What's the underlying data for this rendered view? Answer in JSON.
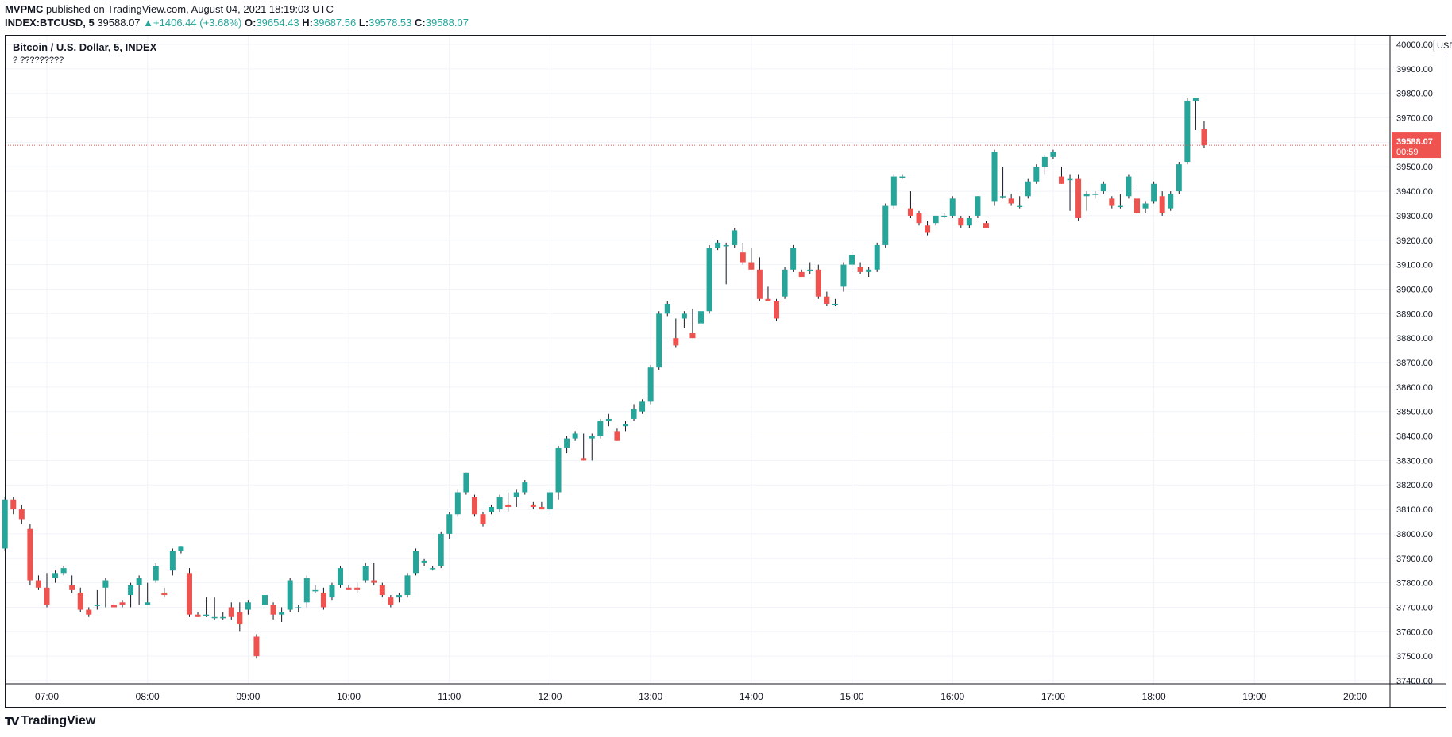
{
  "header": {
    "publisher": "MVPMC",
    "published_line": "published on TradingView.com, August 04, 2021 18:19:03 UTC",
    "symbol": "INDEX:BTCUSD, 5",
    "last": "39588.07",
    "change": "+1406.44 (+3.68%)",
    "o_label": "O:",
    "o": "39654.43",
    "h_label": "H:",
    "h": "39687.56",
    "l_label": "L:",
    "l": "39578.53",
    "c_label": "C:",
    "c": "39588.07"
  },
  "chart_header": {
    "title": "Bitcoin / U.S. Dollar, 5, INDEX",
    "subtitle": "? ?????????",
    "currency_button": "USD"
  },
  "price_badge": {
    "price": "39588.07",
    "countdown": "00:59"
  },
  "brand": {
    "name": "TradingView"
  },
  "colors": {
    "up": "#26a69a",
    "down": "#ef5350",
    "grid": "#f0f3fa",
    "text": "#131722"
  },
  "chart_data": {
    "type": "candlestick",
    "title": "Bitcoin / U.S. Dollar, 5, INDEX",
    "interval_minutes": 5,
    "ylim": [
      37350,
      40050
    ],
    "y_ticks": [
      37400,
      37500,
      37600,
      37700,
      37800,
      37900,
      38000,
      38100,
      38200,
      38300,
      38400,
      38500,
      38600,
      38700,
      38800,
      38900,
      39000,
      39100,
      39200,
      39300,
      39400,
      39500,
      39600,
      39700,
      39800,
      39900,
      40000
    ],
    "y_tick_labels": [
      "37400.00",
      "37500.00",
      "37600.00",
      "37700.00",
      "37800.00",
      "37900.00",
      "38000.00",
      "38100.00",
      "38200.00",
      "38300.00",
      "38400.00",
      "38500.00",
      "38600.00",
      "38700.00",
      "38800.00",
      "38900.00",
      "39000.00",
      "39100.00",
      "39200.00",
      "39300.00",
      "39400.00",
      "39500.00",
      "39600.00",
      "39700.00",
      "39800.00",
      "39900.00",
      "40000.00"
    ],
    "x_ticks": [
      "07:00",
      "08:00",
      "09:00",
      "10:00",
      "11:00",
      "12:00",
      "13:00",
      "14:00",
      "15:00",
      "16:00",
      "17:00",
      "18:00",
      "19:00",
      "20:00"
    ],
    "x_tick_times_min": [
      420,
      480,
      540,
      600,
      660,
      720,
      780,
      840,
      900,
      960,
      1020,
      1080,
      1140,
      1200
    ],
    "xlim_min": [
      395,
      1225
    ],
    "last_price": 39588.07,
    "candles": [
      {
        "t": 395,
        "o": 37940,
        "h": 38150,
        "l": 37930,
        "c": 38140
      },
      {
        "t": 400,
        "o": 38140,
        "h": 38150,
        "l": 38080,
        "c": 38100
      },
      {
        "t": 405,
        "o": 38100,
        "h": 38120,
        "l": 38040,
        "c": 38060
      },
      {
        "t": 410,
        "o": 38020,
        "h": 38040,
        "l": 37790,
        "c": 37810
      },
      {
        "t": 415,
        "o": 37810,
        "h": 37830,
        "l": 37770,
        "c": 37780
      },
      {
        "t": 420,
        "o": 37780,
        "h": 37840,
        "l": 37700,
        "c": 37710
      },
      {
        "t": 425,
        "o": 37820,
        "h": 37850,
        "l": 37800,
        "c": 37840
      },
      {
        "t": 430,
        "o": 37840,
        "h": 37870,
        "l": 37830,
        "c": 37860
      },
      {
        "t": 435,
        "o": 37790,
        "h": 37830,
        "l": 37760,
        "c": 37770
      },
      {
        "t": 440,
        "o": 37760,
        "h": 37780,
        "l": 37680,
        "c": 37690
      },
      {
        "t": 445,
        "o": 37690,
        "h": 37700,
        "l": 37660,
        "c": 37670
      },
      {
        "t": 450,
        "o": 37710,
        "h": 37770,
        "l": 37690,
        "c": 37710
      },
      {
        "t": 455,
        "o": 37780,
        "h": 37820,
        "l": 37700,
        "c": 37810
      },
      {
        "t": 460,
        "o": 37710,
        "h": 37720,
        "l": 37700,
        "c": 37700
      },
      {
        "t": 465,
        "o": 37720,
        "h": 37730,
        "l": 37700,
        "c": 37710
      },
      {
        "t": 470,
        "o": 37750,
        "h": 37800,
        "l": 37700,
        "c": 37790
      },
      {
        "t": 475,
        "o": 37790,
        "h": 37830,
        "l": 37710,
        "c": 37820
      },
      {
        "t": 480,
        "o": 37710,
        "h": 37800,
        "l": 37710,
        "c": 37720
      },
      {
        "t": 485,
        "o": 37810,
        "h": 37880,
        "l": 37800,
        "c": 37870
      },
      {
        "t": 490,
        "o": 37760,
        "h": 37780,
        "l": 37740,
        "c": 37750
      },
      {
        "t": 495,
        "o": 37850,
        "h": 37940,
        "l": 37830,
        "c": 37930
      },
      {
        "t": 500,
        "o": 37930,
        "h": 37950,
        "l": 37920,
        "c": 37950
      },
      {
        "t": 505,
        "o": 37840,
        "h": 37860,
        "l": 37660,
        "c": 37670
      },
      {
        "t": 510,
        "o": 37670,
        "h": 37680,
        "l": 37660,
        "c": 37660
      },
      {
        "t": 515,
        "o": 37670,
        "h": 37740,
        "l": 37660,
        "c": 37670
      },
      {
        "t": 520,
        "o": 37660,
        "h": 37740,
        "l": 37650,
        "c": 37660
      },
      {
        "t": 525,
        "o": 37660,
        "h": 37680,
        "l": 37650,
        "c": 37660
      },
      {
        "t": 530,
        "o": 37700,
        "h": 37720,
        "l": 37650,
        "c": 37660
      },
      {
        "t": 535,
        "o": 37680,
        "h": 37720,
        "l": 37600,
        "c": 37630
      },
      {
        "t": 540,
        "o": 37690,
        "h": 37730,
        "l": 37670,
        "c": 37720
      },
      {
        "t": 545,
        "o": 37580,
        "h": 37590,
        "l": 37490,
        "c": 37500
      },
      {
        "t": 550,
        "o": 37710,
        "h": 37760,
        "l": 37700,
        "c": 37750
      },
      {
        "t": 555,
        "o": 37710,
        "h": 37720,
        "l": 37650,
        "c": 37670
      },
      {
        "t": 560,
        "o": 37670,
        "h": 37700,
        "l": 37640,
        "c": 37680
      },
      {
        "t": 565,
        "o": 37690,
        "h": 37820,
        "l": 37680,
        "c": 37810
      },
      {
        "t": 570,
        "o": 37700,
        "h": 37710,
        "l": 37680,
        "c": 37700
      },
      {
        "t": 575,
        "o": 37720,
        "h": 37830,
        "l": 37700,
        "c": 37820
      },
      {
        "t": 580,
        "o": 37770,
        "h": 37790,
        "l": 37760,
        "c": 37770
      },
      {
        "t": 585,
        "o": 37760,
        "h": 37780,
        "l": 37690,
        "c": 37700
      },
      {
        "t": 590,
        "o": 37740,
        "h": 37800,
        "l": 37730,
        "c": 37790
      },
      {
        "t": 595,
        "o": 37790,
        "h": 37870,
        "l": 37780,
        "c": 37860
      },
      {
        "t": 600,
        "o": 37780,
        "h": 37790,
        "l": 37770,
        "c": 37770
      },
      {
        "t": 605,
        "o": 37780,
        "h": 37800,
        "l": 37760,
        "c": 37770
      },
      {
        "t": 610,
        "o": 37810,
        "h": 37880,
        "l": 37800,
        "c": 37870
      },
      {
        "t": 615,
        "o": 37810,
        "h": 37880,
        "l": 37790,
        "c": 37800
      },
      {
        "t": 620,
        "o": 37790,
        "h": 37800,
        "l": 37740,
        "c": 37750
      },
      {
        "t": 625,
        "o": 37740,
        "h": 37750,
        "l": 37700,
        "c": 37710
      },
      {
        "t": 630,
        "o": 37740,
        "h": 37760,
        "l": 37720,
        "c": 37750
      },
      {
        "t": 635,
        "o": 37750,
        "h": 37840,
        "l": 37740,
        "c": 37830
      },
      {
        "t": 640,
        "o": 37840,
        "h": 37940,
        "l": 37830,
        "c": 37930
      },
      {
        "t": 645,
        "o": 37880,
        "h": 37900,
        "l": 37870,
        "c": 37890
      },
      {
        "t": 650,
        "o": 37860,
        "h": 37870,
        "l": 37850,
        "c": 37860
      },
      {
        "t": 655,
        "o": 37870,
        "h": 38010,
        "l": 37860,
        "c": 38000
      },
      {
        "t": 660,
        "o": 38000,
        "h": 38090,
        "l": 37980,
        "c": 38080
      },
      {
        "t": 665,
        "o": 38080,
        "h": 38180,
        "l": 38070,
        "c": 38170
      },
      {
        "t": 670,
        "o": 38170,
        "h": 38250,
        "l": 38160,
        "c": 38250
      },
      {
        "t": 675,
        "o": 38150,
        "h": 38160,
        "l": 38070,
        "c": 38080
      },
      {
        "t": 680,
        "o": 38080,
        "h": 38090,
        "l": 38030,
        "c": 38040
      },
      {
        "t": 685,
        "o": 38090,
        "h": 38120,
        "l": 38080,
        "c": 38110
      },
      {
        "t": 690,
        "o": 38100,
        "h": 38160,
        "l": 38090,
        "c": 38150
      },
      {
        "t": 695,
        "o": 38120,
        "h": 38170,
        "l": 38090,
        "c": 38110
      },
      {
        "t": 700,
        "o": 38150,
        "h": 38180,
        "l": 38110,
        "c": 38170
      },
      {
        "t": 705,
        "o": 38170,
        "h": 38220,
        "l": 38160,
        "c": 38210
      },
      {
        "t": 710,
        "o": 38120,
        "h": 38130,
        "l": 38100,
        "c": 38110
      },
      {
        "t": 715,
        "o": 38110,
        "h": 38130,
        "l": 38100,
        "c": 38100
      },
      {
        "t": 720,
        "o": 38100,
        "h": 38180,
        "l": 38080,
        "c": 38170
      },
      {
        "t": 725,
        "o": 38170,
        "h": 38360,
        "l": 38140,
        "c": 38350
      },
      {
        "t": 730,
        "o": 38350,
        "h": 38400,
        "l": 38330,
        "c": 38390
      },
      {
        "t": 735,
        "o": 38390,
        "h": 38420,
        "l": 38380,
        "c": 38410
      },
      {
        "t": 740,
        "o": 38310,
        "h": 38410,
        "l": 38300,
        "c": 38300
      },
      {
        "t": 745,
        "o": 38390,
        "h": 38410,
        "l": 38300,
        "c": 38400
      },
      {
        "t": 750,
        "o": 38400,
        "h": 38470,
        "l": 38390,
        "c": 38460
      },
      {
        "t": 755,
        "o": 38460,
        "h": 38490,
        "l": 38440,
        "c": 38470
      },
      {
        "t": 760,
        "o": 38420,
        "h": 38430,
        "l": 38380,
        "c": 38380
      },
      {
        "t": 765,
        "o": 38440,
        "h": 38460,
        "l": 38420,
        "c": 38450
      },
      {
        "t": 770,
        "o": 38470,
        "h": 38530,
        "l": 38460,
        "c": 38510
      },
      {
        "t": 775,
        "o": 38500,
        "h": 38550,
        "l": 38490,
        "c": 38540
      },
      {
        "t": 780,
        "o": 38540,
        "h": 38690,
        "l": 38530,
        "c": 38680
      },
      {
        "t": 785,
        "o": 38680,
        "h": 38910,
        "l": 38670,
        "c": 38900
      },
      {
        "t": 790,
        "o": 38900,
        "h": 38950,
        "l": 38890,
        "c": 38940
      },
      {
        "t": 795,
        "o": 38800,
        "h": 38880,
        "l": 38760,
        "c": 38770
      },
      {
        "t": 800,
        "o": 38880,
        "h": 38910,
        "l": 38840,
        "c": 38900
      },
      {
        "t": 805,
        "o": 38820,
        "h": 38920,
        "l": 38800,
        "c": 38800
      },
      {
        "t": 810,
        "o": 38860,
        "h": 38910,
        "l": 38850,
        "c": 38910
      },
      {
        "t": 815,
        "o": 38910,
        "h": 39180,
        "l": 38900,
        "c": 39170
      },
      {
        "t": 820,
        "o": 39170,
        "h": 39200,
        "l": 39160,
        "c": 39190
      },
      {
        "t": 825,
        "o": 39180,
        "h": 39190,
        "l": 39020,
        "c": 39180
      },
      {
        "t": 830,
        "o": 39180,
        "h": 39250,
        "l": 39170,
        "c": 39240
      },
      {
        "t": 835,
        "o": 39150,
        "h": 39190,
        "l": 39100,
        "c": 39110
      },
      {
        "t": 840,
        "o": 39110,
        "h": 39170,
        "l": 39080,
        "c": 39080
      },
      {
        "t": 845,
        "o": 39080,
        "h": 39130,
        "l": 38950,
        "c": 38960
      },
      {
        "t": 850,
        "o": 38960,
        "h": 39010,
        "l": 38950,
        "c": 38950
      },
      {
        "t": 855,
        "o": 38950,
        "h": 38960,
        "l": 38870,
        "c": 38880
      },
      {
        "t": 860,
        "o": 38970,
        "h": 39090,
        "l": 38960,
        "c": 39080
      },
      {
        "t": 865,
        "o": 39080,
        "h": 39180,
        "l": 39070,
        "c": 39170
      },
      {
        "t": 870,
        "o": 39070,
        "h": 39080,
        "l": 39050,
        "c": 39050
      },
      {
        "t": 875,
        "o": 39080,
        "h": 39110,
        "l": 39060,
        "c": 39080
      },
      {
        "t": 880,
        "o": 39080,
        "h": 39100,
        "l": 38960,
        "c": 38970
      },
      {
        "t": 885,
        "o": 38970,
        "h": 38990,
        "l": 38930,
        "c": 38940
      },
      {
        "t": 890,
        "o": 38940,
        "h": 38960,
        "l": 38930,
        "c": 38940
      },
      {
        "t": 895,
        "o": 39010,
        "h": 39110,
        "l": 38990,
        "c": 39100
      },
      {
        "t": 900,
        "o": 39100,
        "h": 39150,
        "l": 39070,
        "c": 39140
      },
      {
        "t": 905,
        "o": 39090,
        "h": 39110,
        "l": 39060,
        "c": 39070
      },
      {
        "t": 910,
        "o": 39070,
        "h": 39090,
        "l": 39050,
        "c": 39080
      },
      {
        "t": 915,
        "o": 39080,
        "h": 39190,
        "l": 39070,
        "c": 39180
      },
      {
        "t": 920,
        "o": 39180,
        "h": 39350,
        "l": 39170,
        "c": 39340
      },
      {
        "t": 925,
        "o": 39340,
        "h": 39470,
        "l": 39330,
        "c": 39460
      },
      {
        "t": 930,
        "o": 39460,
        "h": 39470,
        "l": 39450,
        "c": 39460
      },
      {
        "t": 935,
        "o": 39330,
        "h": 39400,
        "l": 39290,
        "c": 39300
      },
      {
        "t": 940,
        "o": 39310,
        "h": 39320,
        "l": 39260,
        "c": 39270
      },
      {
        "t": 945,
        "o": 39260,
        "h": 39280,
        "l": 39220,
        "c": 39230
      },
      {
        "t": 950,
        "o": 39270,
        "h": 39300,
        "l": 39260,
        "c": 39300
      },
      {
        "t": 955,
        "o": 39300,
        "h": 39310,
        "l": 39290,
        "c": 39300
      },
      {
        "t": 960,
        "o": 39300,
        "h": 39380,
        "l": 39290,
        "c": 39370
      },
      {
        "t": 965,
        "o": 39290,
        "h": 39300,
        "l": 39250,
        "c": 39260
      },
      {
        "t": 970,
        "o": 39260,
        "h": 39300,
        "l": 39250,
        "c": 39290
      },
      {
        "t": 975,
        "o": 39300,
        "h": 39380,
        "l": 39290,
        "c": 39380
      },
      {
        "t": 980,
        "o": 39270,
        "h": 39280,
        "l": 39250,
        "c": 39250
      },
      {
        "t": 985,
        "o": 39360,
        "h": 39570,
        "l": 39340,
        "c": 39560
      },
      {
        "t": 990,
        "o": 39380,
        "h": 39500,
        "l": 39370,
        "c": 39380
      },
      {
        "t": 995,
        "o": 39370,
        "h": 39390,
        "l": 39340,
        "c": 39350
      },
      {
        "t": 1000,
        "o": 39340,
        "h": 39380,
        "l": 39330,
        "c": 39340
      },
      {
        "t": 1005,
        "o": 39380,
        "h": 39450,
        "l": 39370,
        "c": 39440
      },
      {
        "t": 1010,
        "o": 39440,
        "h": 39510,
        "l": 39430,
        "c": 39500
      },
      {
        "t": 1015,
        "o": 39500,
        "h": 39550,
        "l": 39470,
        "c": 39540
      },
      {
        "t": 1020,
        "o": 39540,
        "h": 39570,
        "l": 39530,
        "c": 39560
      },
      {
        "t": 1025,
        "o": 39460,
        "h": 39500,
        "l": 39430,
        "c": 39430
      },
      {
        "t": 1030,
        "o": 39450,
        "h": 39470,
        "l": 39320,
        "c": 39450
      },
      {
        "t": 1035,
        "o": 39450,
        "h": 39470,
        "l": 39280,
        "c": 39290
      },
      {
        "t": 1040,
        "o": 39380,
        "h": 39400,
        "l": 39320,
        "c": 39390
      },
      {
        "t": 1045,
        "o": 39390,
        "h": 39400,
        "l": 39370,
        "c": 39390
      },
      {
        "t": 1050,
        "o": 39400,
        "h": 39440,
        "l": 39390,
        "c": 39430
      },
      {
        "t": 1055,
        "o": 39370,
        "h": 39380,
        "l": 39330,
        "c": 39340
      },
      {
        "t": 1060,
        "o": 39340,
        "h": 39390,
        "l": 39330,
        "c": 39340
      },
      {
        "t": 1065,
        "o": 39380,
        "h": 39470,
        "l": 39370,
        "c": 39460
      },
      {
        "t": 1070,
        "o": 39370,
        "h": 39420,
        "l": 39300,
        "c": 39310
      },
      {
        "t": 1075,
        "o": 39330,
        "h": 39360,
        "l": 39310,
        "c": 39350
      },
      {
        "t": 1080,
        "o": 39360,
        "h": 39440,
        "l": 39350,
        "c": 39430
      },
      {
        "t": 1085,
        "o": 39380,
        "h": 39400,
        "l": 39300,
        "c": 39310
      },
      {
        "t": 1090,
        "o": 39330,
        "h": 39400,
        "l": 39320,
        "c": 39390
      },
      {
        "t": 1095,
        "o": 39400,
        "h": 39520,
        "l": 39390,
        "c": 39510
      },
      {
        "t": 1100,
        "o": 39520,
        "h": 39780,
        "l": 39510,
        "c": 39770
      },
      {
        "t": 1105,
        "o": 39770,
        "h": 39780,
        "l": 39650,
        "c": 39780
      },
      {
        "t": 1110,
        "o": 39654.43,
        "h": 39687.56,
        "l": 39578.53,
        "c": 39588.07
      }
    ]
  }
}
